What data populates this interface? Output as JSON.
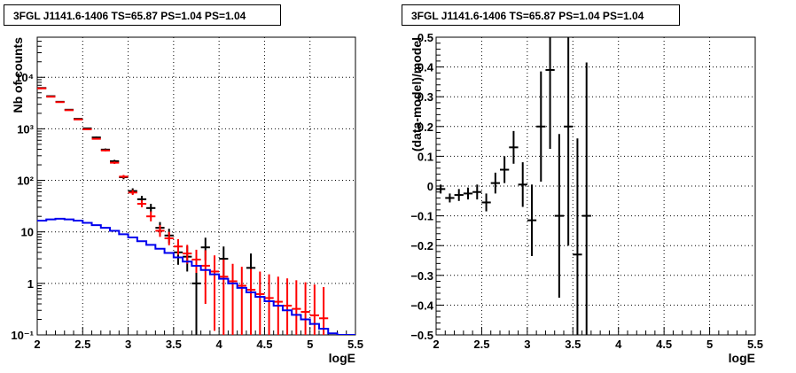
{
  "chart_data": [
    {
      "type": "scatter",
      "title": "3FGL J1141.6-1406 TS=65.87 PS=1.04 PS=1.04",
      "xlabel": "logE",
      "ylabel": "Nb of counts",
      "xscale": "linear",
      "yscale": "log",
      "xlim": [
        2,
        5.5
      ],
      "ylim": [
        0.1,
        60000
      ],
      "grid": true,
      "x_ticks": [
        "2",
        "2.5",
        "3",
        "3.5",
        "4",
        "4.5",
        "5",
        "5.5"
      ],
      "y_ticks": [
        "10⁻¹",
        "1",
        "10",
        "10²",
        "10³",
        "10⁴"
      ],
      "series": [
        {
          "color": "#000000",
          "style": "errorbar",
          "points": [
            {
              "x": 2.05,
              "y": 6200,
              "ylo": 6100,
              "yhi": 6300
            },
            {
              "x": 2.15,
              "y": 4300,
              "ylo": 4230,
              "yhi": 4370
            },
            {
              "x": 2.25,
              "y": 3350,
              "ylo": 3290,
              "yhi": 3410
            },
            {
              "x": 2.35,
              "y": 2350,
              "ylo": 2300,
              "yhi": 2400
            },
            {
              "x": 2.45,
              "y": 1560,
              "ylo": 1520,
              "yhi": 1600
            },
            {
              "x": 2.55,
              "y": 1020,
              "ylo": 990,
              "yhi": 1050
            },
            {
              "x": 2.65,
              "y": 680,
              "ylo": 655,
              "yhi": 705
            },
            {
              "x": 2.75,
              "y": 395,
              "ylo": 375,
              "yhi": 415
            },
            {
              "x": 2.85,
              "y": 235,
              "ylo": 220,
              "yhi": 250
            },
            {
              "x": 2.95,
              "y": 115,
              "ylo": 105,
              "yhi": 126
            },
            {
              "x": 3.05,
              "y": 62,
              "ylo": 54,
              "yhi": 70
            },
            {
              "x": 3.15,
              "y": 43,
              "ylo": 37,
              "yhi": 50
            },
            {
              "x": 3.25,
              "y": 29,
              "ylo": 24,
              "yhi": 35
            },
            {
              "x": 3.35,
              "y": 12,
              "ylo": 9,
              "yhi": 15.5
            },
            {
              "x": 3.45,
              "y": 8.5,
              "ylo": 6,
              "yhi": 11.5
            },
            {
              "x": 3.55,
              "y": 4,
              "ylo": 2.3,
              "yhi": 6.2
            },
            {
              "x": 3.65,
              "y": 3.3,
              "ylo": 1.7,
              "yhi": 5.3
            },
            {
              "x": 3.75,
              "y": 1,
              "ylo": 0.1,
              "yhi": 2.4
            },
            {
              "x": 3.85,
              "y": 5,
              "ylo": 2.8,
              "yhi": 7.7
            },
            {
              "x": 4.05,
              "y": 3,
              "ylo": 1.4,
              "yhi": 5.2
            },
            {
              "x": 4.35,
              "y": 2,
              "ylo": 0.8,
              "yhi": 3.8
            }
          ]
        },
        {
          "color": "#ff0000",
          "style": "errorbar",
          "points": [
            {
              "x": 2.05,
              "y": 6100,
              "ylo": 6020,
              "yhi": 6180
            },
            {
              "x": 2.15,
              "y": 4200,
              "ylo": 4140,
              "yhi": 4260
            },
            {
              "x": 2.25,
              "y": 3300,
              "ylo": 3250,
              "yhi": 3350
            },
            {
              "x": 2.35,
              "y": 2300,
              "ylo": 2260,
              "yhi": 2340
            },
            {
              "x": 2.45,
              "y": 1520,
              "ylo": 1490,
              "yhi": 1550
            },
            {
              "x": 2.55,
              "y": 980,
              "ylo": 955,
              "yhi": 1005
            },
            {
              "x": 2.65,
              "y": 640,
              "ylo": 620,
              "yhi": 660
            },
            {
              "x": 2.75,
              "y": 380,
              "ylo": 365,
              "yhi": 395
            },
            {
              "x": 2.85,
              "y": 220,
              "ylo": 208,
              "yhi": 232
            },
            {
              "x": 2.95,
              "y": 118,
              "ylo": 110,
              "yhi": 127
            },
            {
              "x": 3.05,
              "y": 58,
              "ylo": 52,
              "yhi": 65
            },
            {
              "x": 3.15,
              "y": 35,
              "ylo": 30,
              "yhi": 41
            },
            {
              "x": 3.25,
              "y": 20,
              "ylo": 16,
              "yhi": 25
            },
            {
              "x": 3.35,
              "y": 10.5,
              "ylo": 8,
              "yhi": 13.5
            },
            {
              "x": 3.45,
              "y": 7.5,
              "ylo": 5.5,
              "yhi": 10
            },
            {
              "x": 3.55,
              "y": 5.2,
              "ylo": 3.6,
              "yhi": 7.2
            },
            {
              "x": 3.65,
              "y": 3.8,
              "ylo": 2.4,
              "yhi": 5.6
            },
            {
              "x": 3.75,
              "y": 2.9,
              "ylo": 1.6,
              "yhi": 4.5
            },
            {
              "x": 3.85,
              "y": 2.2,
              "ylo": 0.4,
              "yhi": 4.4
            },
            {
              "x": 3.95,
              "y": 1.7,
              "ylo": 0.12,
              "yhi": 3.5
            },
            {
              "x": 4.05,
              "y": 1.35,
              "ylo": 0.1,
              "yhi": 2.9
            },
            {
              "x": 4.15,
              "y": 1.1,
              "ylo": 0.1,
              "yhi": 2.4
            },
            {
              "x": 4.25,
              "y": 0.9,
              "ylo": 0.1,
              "yhi": 2.1
            },
            {
              "x": 4.35,
              "y": 0.75,
              "ylo": 0.1,
              "yhi": 1.9
            },
            {
              "x": 4.45,
              "y": 0.62,
              "ylo": 0.1,
              "yhi": 1.7
            },
            {
              "x": 4.55,
              "y": 0.52,
              "ylo": 0.1,
              "yhi": 1.5
            },
            {
              "x": 4.65,
              "y": 0.44,
              "ylo": 0.1,
              "yhi": 1.35
            },
            {
              "x": 4.75,
              "y": 0.37,
              "ylo": 0.1,
              "yhi": 1.25
            },
            {
              "x": 4.85,
              "y": 0.32,
              "ylo": 0.1,
              "yhi": 1.15
            },
            {
              "x": 4.95,
              "y": 0.28,
              "ylo": 0.1,
              "yhi": 1.05
            },
            {
              "x": 5.05,
              "y": 0.24,
              "ylo": 0.1,
              "yhi": 0.95
            },
            {
              "x": 5.15,
              "y": 0.21,
              "ylo": 0.1,
              "yhi": 0.85
            }
          ]
        },
        {
          "color": "#0000ee",
          "style": "step",
          "bin_edges": [
            2.0,
            2.1,
            2.2,
            2.3,
            2.4,
            2.5,
            2.6,
            2.7,
            2.8,
            2.9,
            3.0,
            3.1,
            3.2,
            3.3,
            3.4,
            3.5,
            3.6,
            3.7,
            3.8,
            3.9,
            4.0,
            4.1,
            4.2,
            4.3,
            4.4,
            4.5,
            4.6,
            4.7,
            4.8,
            4.9,
            5.0,
            5.1,
            5.2,
            5.3,
            5.4,
            5.5
          ],
          "values": [
            16.5,
            17.5,
            18,
            17.5,
            16.5,
            15,
            13.5,
            12,
            10.5,
            9,
            7.8,
            6.6,
            5.6,
            4.7,
            3.9,
            3.2,
            2.65,
            2.2,
            1.82,
            1.5,
            1.23,
            1.0,
            0.82,
            0.67,
            0.55,
            0.45,
            0.37,
            0.3,
            0.245,
            0.2,
            0.163,
            0.132,
            0.107,
            0.1,
            0.1
          ]
        }
      ]
    },
    {
      "type": "scatter",
      "title": "3FGL J1141.6-1406 TS=65.87 PS=1.04 PS=1.04",
      "xlabel": "logE",
      "ylabel": "(data-model)/model",
      "xscale": "linear",
      "yscale": "linear",
      "xlim": [
        2,
        5.5
      ],
      "ylim": [
        -0.5,
        0.5
      ],
      "grid": true,
      "x_ticks": [
        "2",
        "2.5",
        "3",
        "3.5",
        "4",
        "4.5",
        "5",
        "5.5"
      ],
      "y_ticks": [
        "−0.5",
        "−0.4",
        "−0.3",
        "−0.2",
        "−0.1",
        "0",
        "0.1",
        "0.2",
        "0.3",
        "0.4",
        "0.5"
      ],
      "series": [
        {
          "color": "#000000",
          "style": "errorbar",
          "points": [
            {
              "x": 2.05,
              "y": -0.01,
              "ylo": -0.025,
              "yhi": 0.005
            },
            {
              "x": 2.15,
              "y": -0.04,
              "ylo": -0.055,
              "yhi": -0.025
            },
            {
              "x": 2.25,
              "y": -0.03,
              "ylo": -0.05,
              "yhi": -0.01
            },
            {
              "x": 2.35,
              "y": -0.025,
              "ylo": -0.045,
              "yhi": -0.005
            },
            {
              "x": 2.45,
              "y": -0.02,
              "ylo": -0.045,
              "yhi": 0.005
            },
            {
              "x": 2.55,
              "y": -0.055,
              "ylo": -0.085,
              "yhi": -0.025
            },
            {
              "x": 2.65,
              "y": 0.01,
              "ylo": -0.025,
              "yhi": 0.045
            },
            {
              "x": 2.75,
              "y": 0.055,
              "ylo": 0.01,
              "yhi": 0.1
            },
            {
              "x": 2.85,
              "y": 0.13,
              "ylo": 0.075,
              "yhi": 0.185
            },
            {
              "x": 2.95,
              "y": 0.005,
              "ylo": -0.07,
              "yhi": 0.08
            },
            {
              "x": 3.05,
              "y": -0.115,
              "ylo": -0.235,
              "yhi": 0.005
            },
            {
              "x": 3.15,
              "y": 0.2,
              "ylo": 0.015,
              "yhi": 0.385
            },
            {
              "x": 3.25,
              "y": 0.39,
              "ylo": 0.125,
              "yhi": 0.5
            },
            {
              "x": 3.35,
              "y": -0.1,
              "ylo": -0.375,
              "yhi": 0.175
            },
            {
              "x": 3.45,
              "y": 0.2,
              "ylo": -0.2,
              "yhi": 0.5
            },
            {
              "x": 3.55,
              "y": -0.23,
              "ylo": -0.5,
              "yhi": 0.16
            },
            {
              "x": 3.65,
              "y": -0.1,
              "ylo": -0.5,
              "yhi": 0.415
            }
          ]
        }
      ]
    }
  ]
}
